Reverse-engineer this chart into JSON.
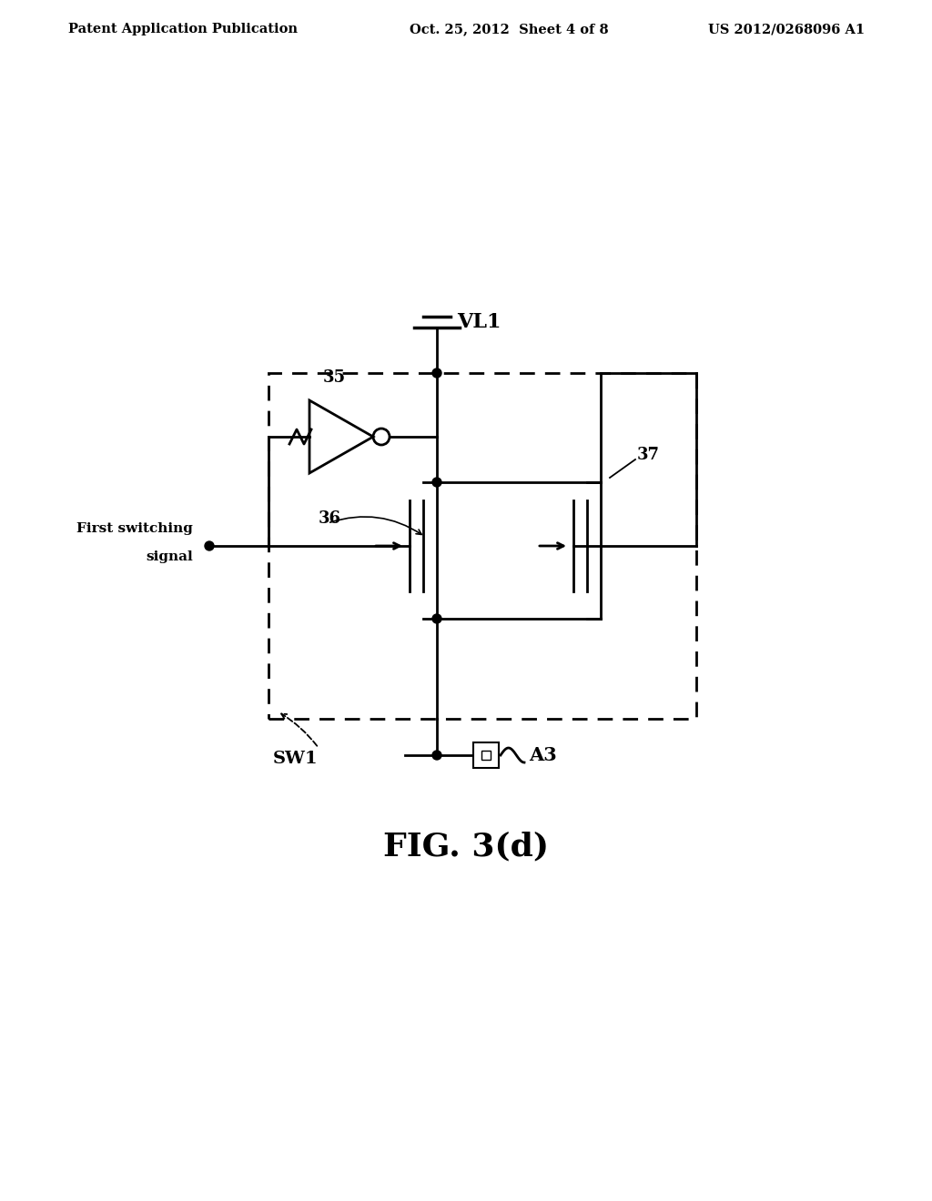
{
  "background_color": "#ffffff",
  "header_left": "Patent Application Publication",
  "header_center": "Oct. 25, 2012  Sheet 4 of 8",
  "header_right": "US 2012/0268096 A1",
  "header_fontsize": 10.5,
  "figure_label": "FIG. 3(d)",
  "figure_label_fontsize": 26,
  "label_VL1": "VL1",
  "label_A3": "A3",
  "label_SW1": "SW1",
  "label_35": "35",
  "label_36": "36",
  "label_37": "37",
  "label_first_switching_1": "First switching",
  "label_first_switching_2": "signal",
  "line_color": "#000000"
}
